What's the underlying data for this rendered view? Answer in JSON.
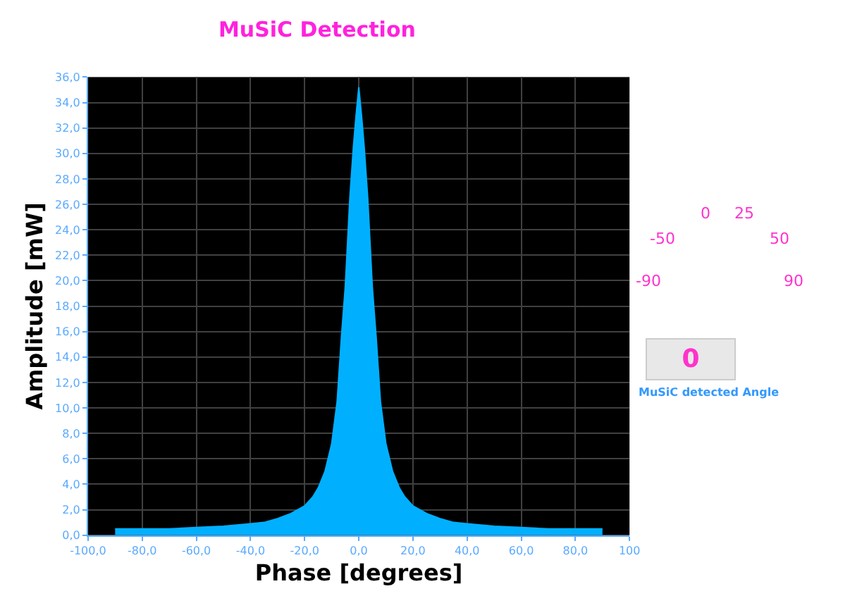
{
  "chart_data": [
    {
      "type": "area",
      "title": "MuSiC Detection",
      "xlabel": "Phase [degrees]",
      "ylabel": "Amplitude [mW]",
      "x": [
        -90,
        -80,
        -70,
        -60,
        -50,
        -40,
        -35,
        -30,
        -25,
        -20,
        -17,
        -15,
        -12.5,
        -10,
        -8,
        -6.4,
        -5,
        -3.3,
        -2,
        -1,
        0,
        1,
        2,
        3.3,
        5,
        6.4,
        8,
        10,
        12.5,
        15,
        17,
        20,
        25,
        30,
        35,
        40,
        50,
        60,
        70,
        80,
        90
      ],
      "series": [
        {
          "color": "#00b0ff",
          "values": [
            0.5,
            0.5,
            0.5,
            0.6,
            0.7,
            0.9,
            1.0,
            1.3,
            1.7,
            2.3,
            3.0,
            3.7,
            5.0,
            7.2,
            10.5,
            15.6,
            19.5,
            26.5,
            30.5,
            33,
            35.2,
            33,
            30.5,
            26.5,
            19.5,
            15.6,
            10.5,
            7.2,
            5.0,
            3.7,
            3.0,
            2.3,
            1.7,
            1.3,
            1.0,
            0.9,
            0.7,
            0.6,
            0.5,
            0.5,
            0.5
          ]
        }
      ],
      "xlim": [
        -100,
        100
      ],
      "ylim": [
        0,
        36
      ],
      "xticks": [
        {
          "value": -100,
          "label": "-100,0"
        },
        {
          "value": -80,
          "label": "-80,0"
        },
        {
          "value": -60,
          "label": "-60,0"
        },
        {
          "value": -40,
          "label": "-40,0"
        },
        {
          "value": -20,
          "label": "-20,0"
        },
        {
          "value": 0,
          "label": "0,0"
        },
        {
          "value": 20,
          "label": "20,0"
        },
        {
          "value": 40,
          "label": "40,0"
        },
        {
          "value": 60,
          "label": "60,0"
        },
        {
          "value": 80,
          "label": "80,0"
        },
        100
      ],
      "yticks": [
        {
          "value": 0,
          "label": "0,0"
        },
        {
          "value": 2,
          "label": "2,0"
        },
        {
          "value": 4,
          "label": "4,0"
        },
        {
          "value": 6,
          "label": "6,0"
        },
        {
          "value": 8,
          "label": "8,0"
        },
        {
          "value": 10,
          "label": "10,0"
        },
        {
          "value": 12,
          "label": "12,0"
        },
        {
          "value": 14,
          "label": "14,0"
        },
        {
          "value": 16,
          "label": "16,0"
        },
        {
          "value": 18,
          "label": "18,0"
        },
        {
          "value": 20,
          "label": "20,0"
        },
        {
          "value": 22,
          "label": "22,0"
        },
        {
          "value": 24,
          "label": "24,0"
        },
        {
          "value": 26,
          "label": "26,0"
        },
        {
          "value": 28,
          "label": "28,0"
        },
        {
          "value": 30,
          "label": "30,0"
        },
        {
          "value": 32,
          "label": "32,0"
        },
        {
          "value": 34,
          "label": "34,0"
        },
        {
          "value": 36,
          "label": "36,0"
        }
      ],
      "grid": true
    },
    {
      "type": "other",
      "title": "MuSiC detected Angle",
      "color": "#ff33cc",
      "annotations": [
        "-90",
        "-50",
        "0",
        "25",
        "50",
        "90",
        "0"
      ]
    }
  ]
}
